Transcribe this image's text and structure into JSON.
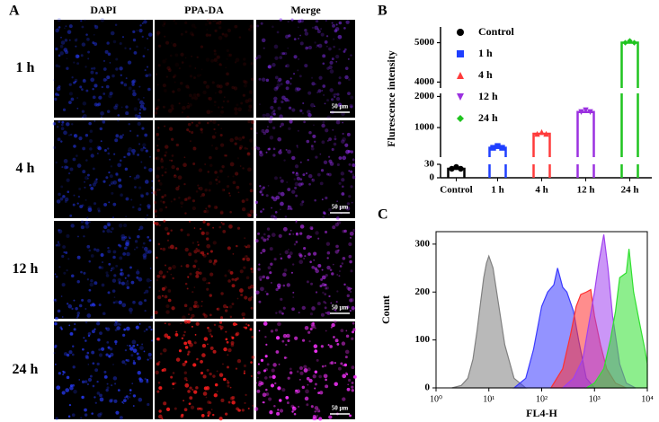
{
  "panel_a": {
    "label": "A",
    "columns": [
      "DAPI",
      "PPA-DA",
      "Merge"
    ],
    "rows": [
      "1 h",
      "4 h",
      "12 h",
      "24 h"
    ],
    "scale_bar": "50 μm"
  },
  "chart_data": [
    {
      "type": "bar",
      "panel_label": "B",
      "ylabel": "Flurescence intensity",
      "categories": [
        "Control",
        "1 h",
        "4 h",
        "12 h",
        "24 h"
      ],
      "series": [
        {
          "name": "Control",
          "color": "#000000",
          "marker": "circle",
          "value": 20
        },
        {
          "name": "1 h",
          "color": "#1f3fff",
          "marker": "square",
          "value": 350
        },
        {
          "name": "4 h",
          "color": "#ff3b3b",
          "marker": "triangle-up",
          "value": 800
        },
        {
          "name": "12 h",
          "color": "#9b30e0",
          "marker": "triangle-down",
          "value": 1500
        },
        {
          "name": "24 h",
          "color": "#1fc41f",
          "marker": "diamond",
          "value": 5000
        }
      ],
      "ylim_segments": [
        [
          0,
          30
        ],
        [
          50,
          2100
        ],
        [
          3850,
          5400
        ]
      ],
      "yticks": [
        0,
        30,
        1000,
        2000,
        4000,
        5000
      ],
      "legend": "upper left"
    },
    {
      "type": "histogram-curves",
      "panel_label": "C",
      "xlabel": "FL4-H",
      "ylabel": "Count",
      "xscale": "log",
      "xlim": [
        1,
        10000
      ],
      "ylim": [
        0,
        326
      ],
      "xticks": [
        {
          "value": 1,
          "label": "10⁰"
        },
        {
          "value": 10,
          "label": "10¹"
        },
        {
          "value": 100,
          "label": "10²"
        },
        {
          "value": 1000,
          "label": "10³"
        },
        {
          "value": 10000,
          "label": "10⁴"
        }
      ],
      "yticks": [
        0,
        100,
        200,
        300
      ],
      "series": [
        {
          "color": "#808080",
          "x": [
            2,
            3,
            4,
            5,
            6,
            7,
            8,
            9,
            10,
            12,
            15,
            20,
            30,
            50
          ],
          "values": [
            0,
            5,
            20,
            60,
            120,
            180,
            230,
            260,
            275,
            250,
            180,
            90,
            20,
            0
          ]
        },
        {
          "color": "#3a3aff",
          "x": [
            30,
            50,
            70,
            100,
            130,
            170,
            200,
            250,
            300,
            400,
            500,
            700,
            1000
          ],
          "values": [
            0,
            20,
            80,
            170,
            200,
            215,
            250,
            210,
            200,
            160,
            100,
            20,
            0
          ]
        },
        {
          "color": "#ff3030",
          "x": [
            150,
            250,
            350,
            450,
            550,
            700,
            850,
            1000,
            1300,
            1700,
            2500,
            4000
          ],
          "values": [
            0,
            40,
            110,
            170,
            195,
            200,
            205,
            150,
            90,
            40,
            10,
            0
          ]
        },
        {
          "color": "#a040f0",
          "x": [
            250,
            400,
            600,
            800,
            1000,
            1200,
            1500,
            1800,
            2200,
            3000,
            4000,
            6000
          ],
          "values": [
            0,
            20,
            60,
            140,
            200,
            260,
            320,
            250,
            150,
            50,
            10,
            0
          ]
        },
        {
          "color": "#30e030",
          "x": [
            700,
            1000,
            1500,
            2000,
            2500,
            3000,
            4000,
            4500,
            5500,
            7000,
            9000,
            10000
          ],
          "values": [
            0,
            10,
            40,
            100,
            160,
            230,
            240,
            290,
            200,
            140,
            80,
            50
          ]
        }
      ]
    }
  ]
}
